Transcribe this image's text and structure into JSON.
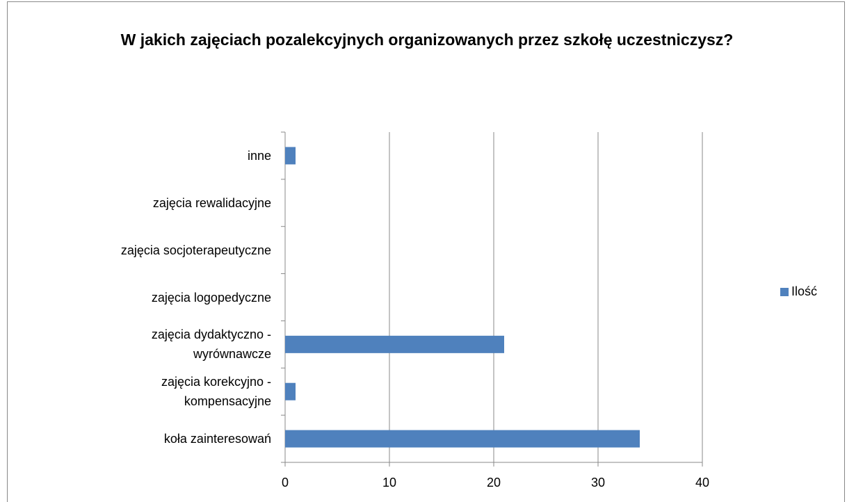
{
  "chart_data": {
    "type": "bar",
    "orientation": "horizontal",
    "title": "W jakich zajęciach pozalekcyjnych organizowanych przez szkołę uczestniczysz?",
    "categories": [
      "koła zainteresowań",
      "zajęcia korekcyjno - kompensacyjne",
      "zajęcia dydaktyczno - wyrównawcze",
      "zajęcia logopedyczne",
      "zajęcia socjoterapeutyczne",
      "zajęcia rewalidacyjne",
      "inne"
    ],
    "series": [
      {
        "name": "Ilość",
        "color": "#4f81bd",
        "values": [
          34,
          1,
          21,
          0,
          0,
          0,
          1
        ]
      }
    ],
    "xlim": [
      0,
      40
    ],
    "xticks": [
      0,
      10,
      20,
      30,
      40
    ],
    "grid": true,
    "legend": "right"
  }
}
